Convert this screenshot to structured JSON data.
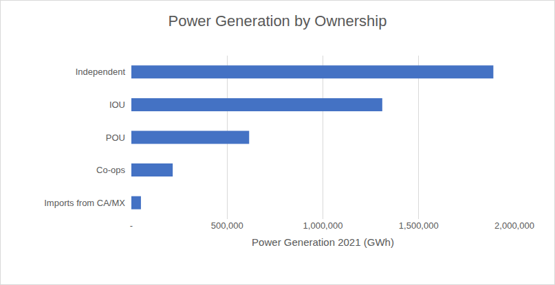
{
  "chart_data": {
    "type": "bar",
    "orientation": "horizontal",
    "title": "Power Generation by Ownership",
    "x_label": "Power Generation 2021 (GWh)",
    "categories": [
      "Independent",
      "IOU",
      "POU",
      "Co-ops",
      "Imports from CA/MX"
    ],
    "values": [
      1890000,
      1310000,
      615000,
      216000,
      50000
    ],
    "color": "#4472c4",
    "xlim": [
      0,
      2000000
    ],
    "xticks": [
      {
        "value": 0,
        "label": "-"
      },
      {
        "value": 500000,
        "label": "500,000"
      },
      {
        "value": 1000000,
        "label": "1,000,000"
      },
      {
        "value": 1500000,
        "label": "1,500,000"
      },
      {
        "value": 2000000,
        "label": "2,000,000"
      }
    ],
    "grid": true
  }
}
